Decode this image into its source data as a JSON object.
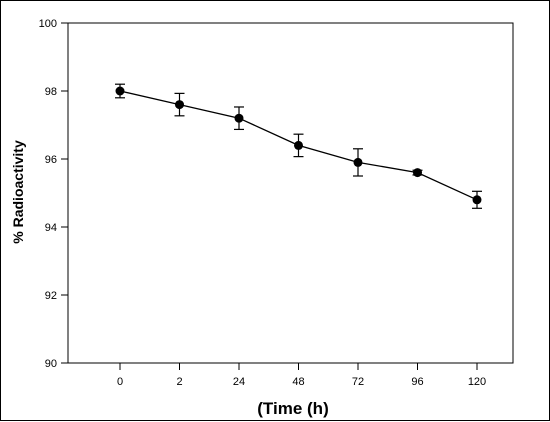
{
  "chart_data": {
    "type": "line",
    "title": "",
    "xlabel": "(Time (h)",
    "ylabel": "% Radioactivity",
    "categories": [
      "0",
      "2",
      "24",
      "48",
      "72",
      "96",
      "120"
    ],
    "series": [
      {
        "values": [
          98.0,
          97.6,
          97.2,
          96.4,
          95.9,
          95.6,
          94.8
        ],
        "error": [
          0.2,
          0.33,
          0.33,
          0.33,
          0.4,
          0.07,
          0.25
        ],
        "color": "#000000",
        "marker": "filled-circle"
      }
    ],
    "ylim": [
      90,
      100
    ],
    "yticks": [
      "90",
      "92",
      "94",
      "96",
      "98",
      "100"
    ],
    "grid": false,
    "legend": "none"
  }
}
